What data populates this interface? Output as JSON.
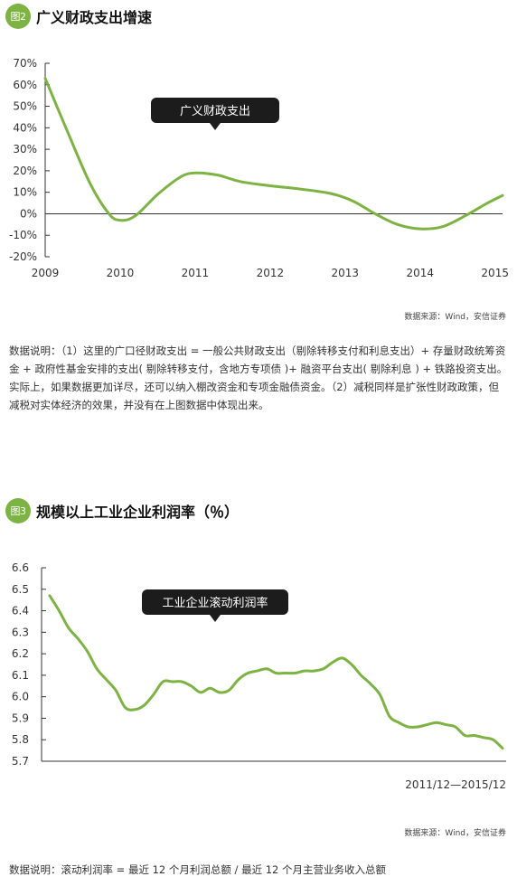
{
  "colors": {
    "accent": "#7cb342",
    "line": "#7cb342",
    "callout": "#1c1c1c"
  },
  "figures": [
    {
      "badge": "图2",
      "title": "广义财政支出增速",
      "source": "数据来源：Wind，安信证券",
      "note": "数据说明：（1）这里的广口径财政支出 = 一般公共财政支出（剔除转移支付和利息支出）+ 存量财政统筹资金 + 政府性基金安排的支出( 剔除转移支付，含地方专项债 )+ 融资平台支出( 剔除利息 ) + 铁路投资支出。实际上，如果数据更加详尽，还可以纳入棚改资金和专项金融债资金。（2）减税同样是扩张性财政政策，但减税对实体经济的效果，并没有在上图数据中体现出来。"
    },
    {
      "badge": "图3",
      "title": "规模以上工业企业利润率（％）",
      "source": "数据来源：Wind，安信证券",
      "note": "数据说明：滚动利润率 = 最近 12 个月利润总额 / 最近 12 个月主营业务收入总额"
    }
  ],
  "chart_data": [
    {
      "type": "line",
      "title": "广义财政支出增速",
      "x_ticks": [
        "2009",
        "2010",
        "2011",
        "2012",
        "2013",
        "2014",
        "2015"
      ],
      "y_ticks": [
        "70%",
        "60%",
        "50%",
        "40%",
        "30%",
        "20%",
        "10%",
        "0%",
        "-10%",
        "-20%"
      ],
      "ylim": [
        -20,
        70
      ],
      "xlim": [
        2009,
        2015.1
      ],
      "series": [
        {
          "name": "广义财政支出",
          "x": [
            2009.0,
            2009.3,
            2009.6,
            2009.85,
            2010.0,
            2010.2,
            2010.5,
            2010.8,
            2011.0,
            2011.3,
            2011.6,
            2012.0,
            2012.4,
            2012.8,
            2013.1,
            2013.4,
            2013.7,
            2014.0,
            2014.3,
            2014.6,
            2014.9,
            2015.1
          ],
          "y": [
            63,
            38,
            14,
            0,
            -3,
            -1,
            9,
            17,
            19,
            18,
            15,
            13,
            11.5,
            9.5,
            6,
            0,
            -5,
            -7,
            -6,
            -1,
            5,
            8.5
          ]
        }
      ],
      "callout": "广义财政支出",
      "grid": false
    },
    {
      "type": "line",
      "title": "规模以上工业企业利润率（％）",
      "x_label": "2011/12—2015/12",
      "y_ticks": [
        "6.6",
        "6.5",
        "6.4",
        "6.3",
        "6.2",
        "6.1",
        "6.0",
        "5.9",
        "5.8",
        "5.7"
      ],
      "ylim": [
        5.7,
        6.6
      ],
      "series": [
        {
          "name": "工业企业滚动利润率",
          "y": [
            6.47,
            6.4,
            6.32,
            6.27,
            6.21,
            6.13,
            6.08,
            6.03,
            5.95,
            5.94,
            5.96,
            6.01,
            6.07,
            6.07,
            6.07,
            6.05,
            6.02,
            6.04,
            6.02,
            6.03,
            6.08,
            6.11,
            6.12,
            6.13,
            6.11,
            6.11,
            6.11,
            6.12,
            6.12,
            6.13,
            6.16,
            6.18,
            6.15,
            6.1,
            6.06,
            6.01,
            5.91,
            5.88,
            5.86,
            5.86,
            5.87,
            5.88,
            5.87,
            5.86,
            5.82,
            5.82,
            5.81,
            5.8,
            5.76
          ]
        }
      ],
      "callout": "工业企业滚动利润率",
      "grid": false
    }
  ]
}
